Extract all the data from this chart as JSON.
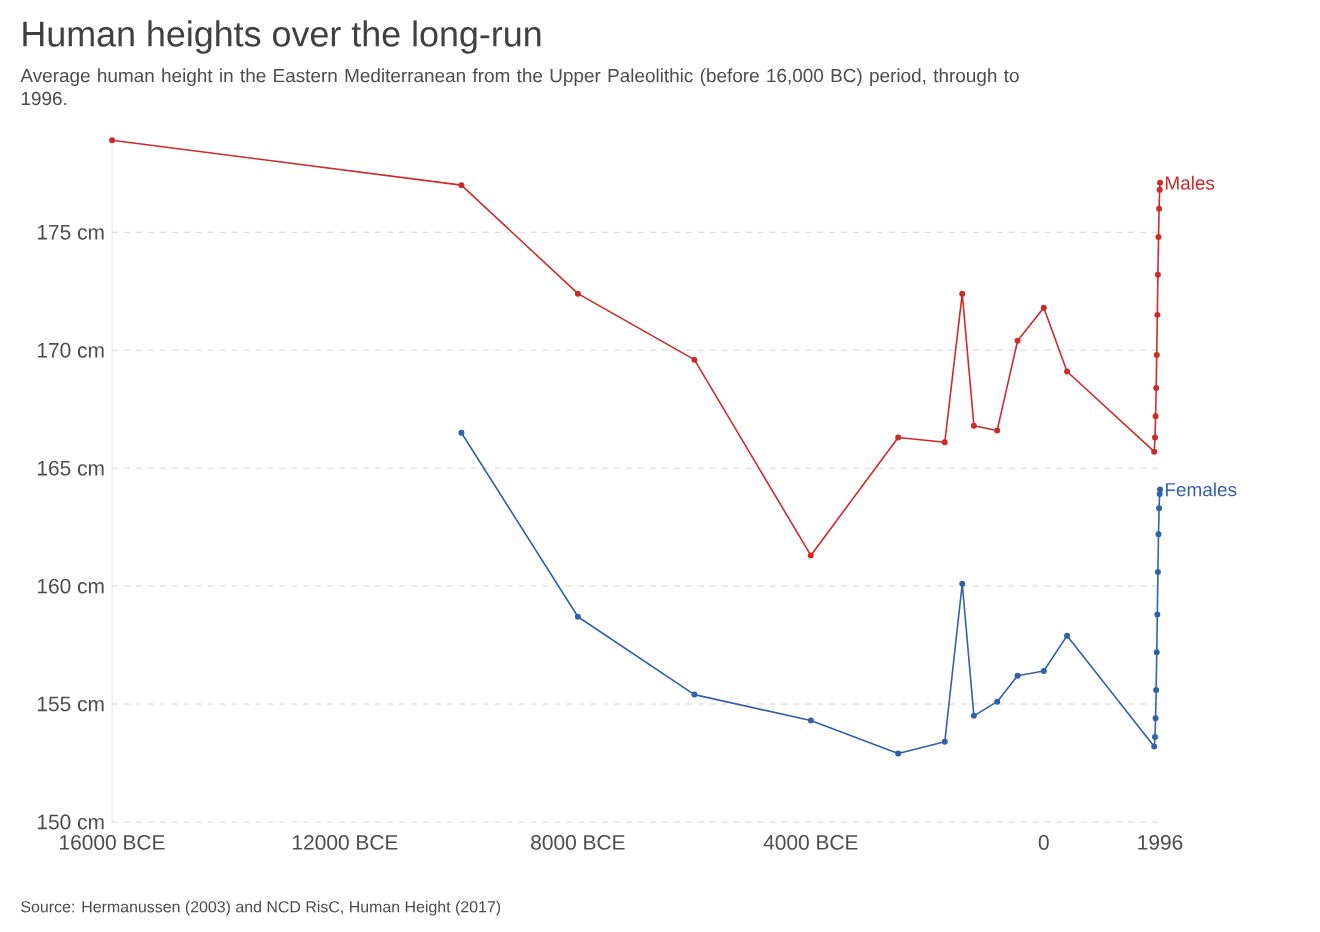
{
  "chart_data": {
    "type": "line",
    "title": "Human heights over the long-run",
    "subtitle": "Average human height in the Eastern Mediterranean from the Upper Paleolithic (before 16,000 BC) period, through to 1996.",
    "xlim": [
      -16000,
      1996
    ],
    "ylim": [
      150,
      179
    ],
    "xticks": [
      {
        "value": -16000,
        "label": "16000 BCE"
      },
      {
        "value": -12000,
        "label": "12000 BCE"
      },
      {
        "value": -8000,
        "label": "8000 BCE"
      },
      {
        "value": -4000,
        "label": "4000 BCE"
      },
      0,
      1996
    ],
    "yticks": [
      {
        "value": 150,
        "label": "150 cm"
      },
      {
        "value": 155,
        "label": "155 cm"
      },
      {
        "value": 160,
        "label": "160 cm"
      },
      {
        "value": 165,
        "label": "165 cm"
      },
      {
        "value": 170,
        "label": "170 cm"
      },
      {
        "value": 175,
        "label": "175 cm"
      }
    ],
    "grid": "y",
    "marker": "circle",
    "line_style": "solid",
    "series": [
      {
        "name": "Males",
        "color": "#ce2a2a",
        "x": [
          -16000,
          -10000,
          -8000,
          -6000,
          -4000,
          -2500,
          -1700,
          -1400,
          -1200,
          -800,
          -450,
          0,
          400,
          1896,
          1910,
          1920,
          1930,
          1940,
          1950,
          1960,
          1970,
          1980,
          1990,
          1996
        ],
        "values": [
          178.9,
          177.0,
          172.4,
          169.6,
          161.3,
          166.3,
          166.1,
          172.4,
          166.8,
          166.6,
          170.4,
          171.8,
          169.1,
          165.7,
          166.3,
          167.2,
          168.4,
          169.8,
          171.5,
          173.2,
          174.8,
          176.0,
          176.8,
          177.1
        ]
      },
      {
        "name": "Females",
        "color": "#3360a9",
        "x": [
          -10000,
          -8000,
          -6000,
          -4000,
          -2500,
          -1700,
          -1400,
          -1200,
          -800,
          -450,
          0,
          400,
          1896,
          1910,
          1920,
          1930,
          1940,
          1950,
          1960,
          1970,
          1980,
          1990,
          1996
        ],
        "values": [
          166.5,
          158.7,
          155.4,
          154.3,
          152.9,
          153.4,
          160.1,
          154.5,
          155.1,
          156.2,
          156.4,
          157.9,
          153.2,
          153.6,
          154.4,
          155.6,
          157.2,
          158.8,
          160.6,
          162.2,
          163.3,
          163.9,
          164.1
        ]
      }
    ],
    "annotations": [
      "Source: Hermanussen (2003) and NCD RisC, Human Height (2017)"
    ]
  }
}
